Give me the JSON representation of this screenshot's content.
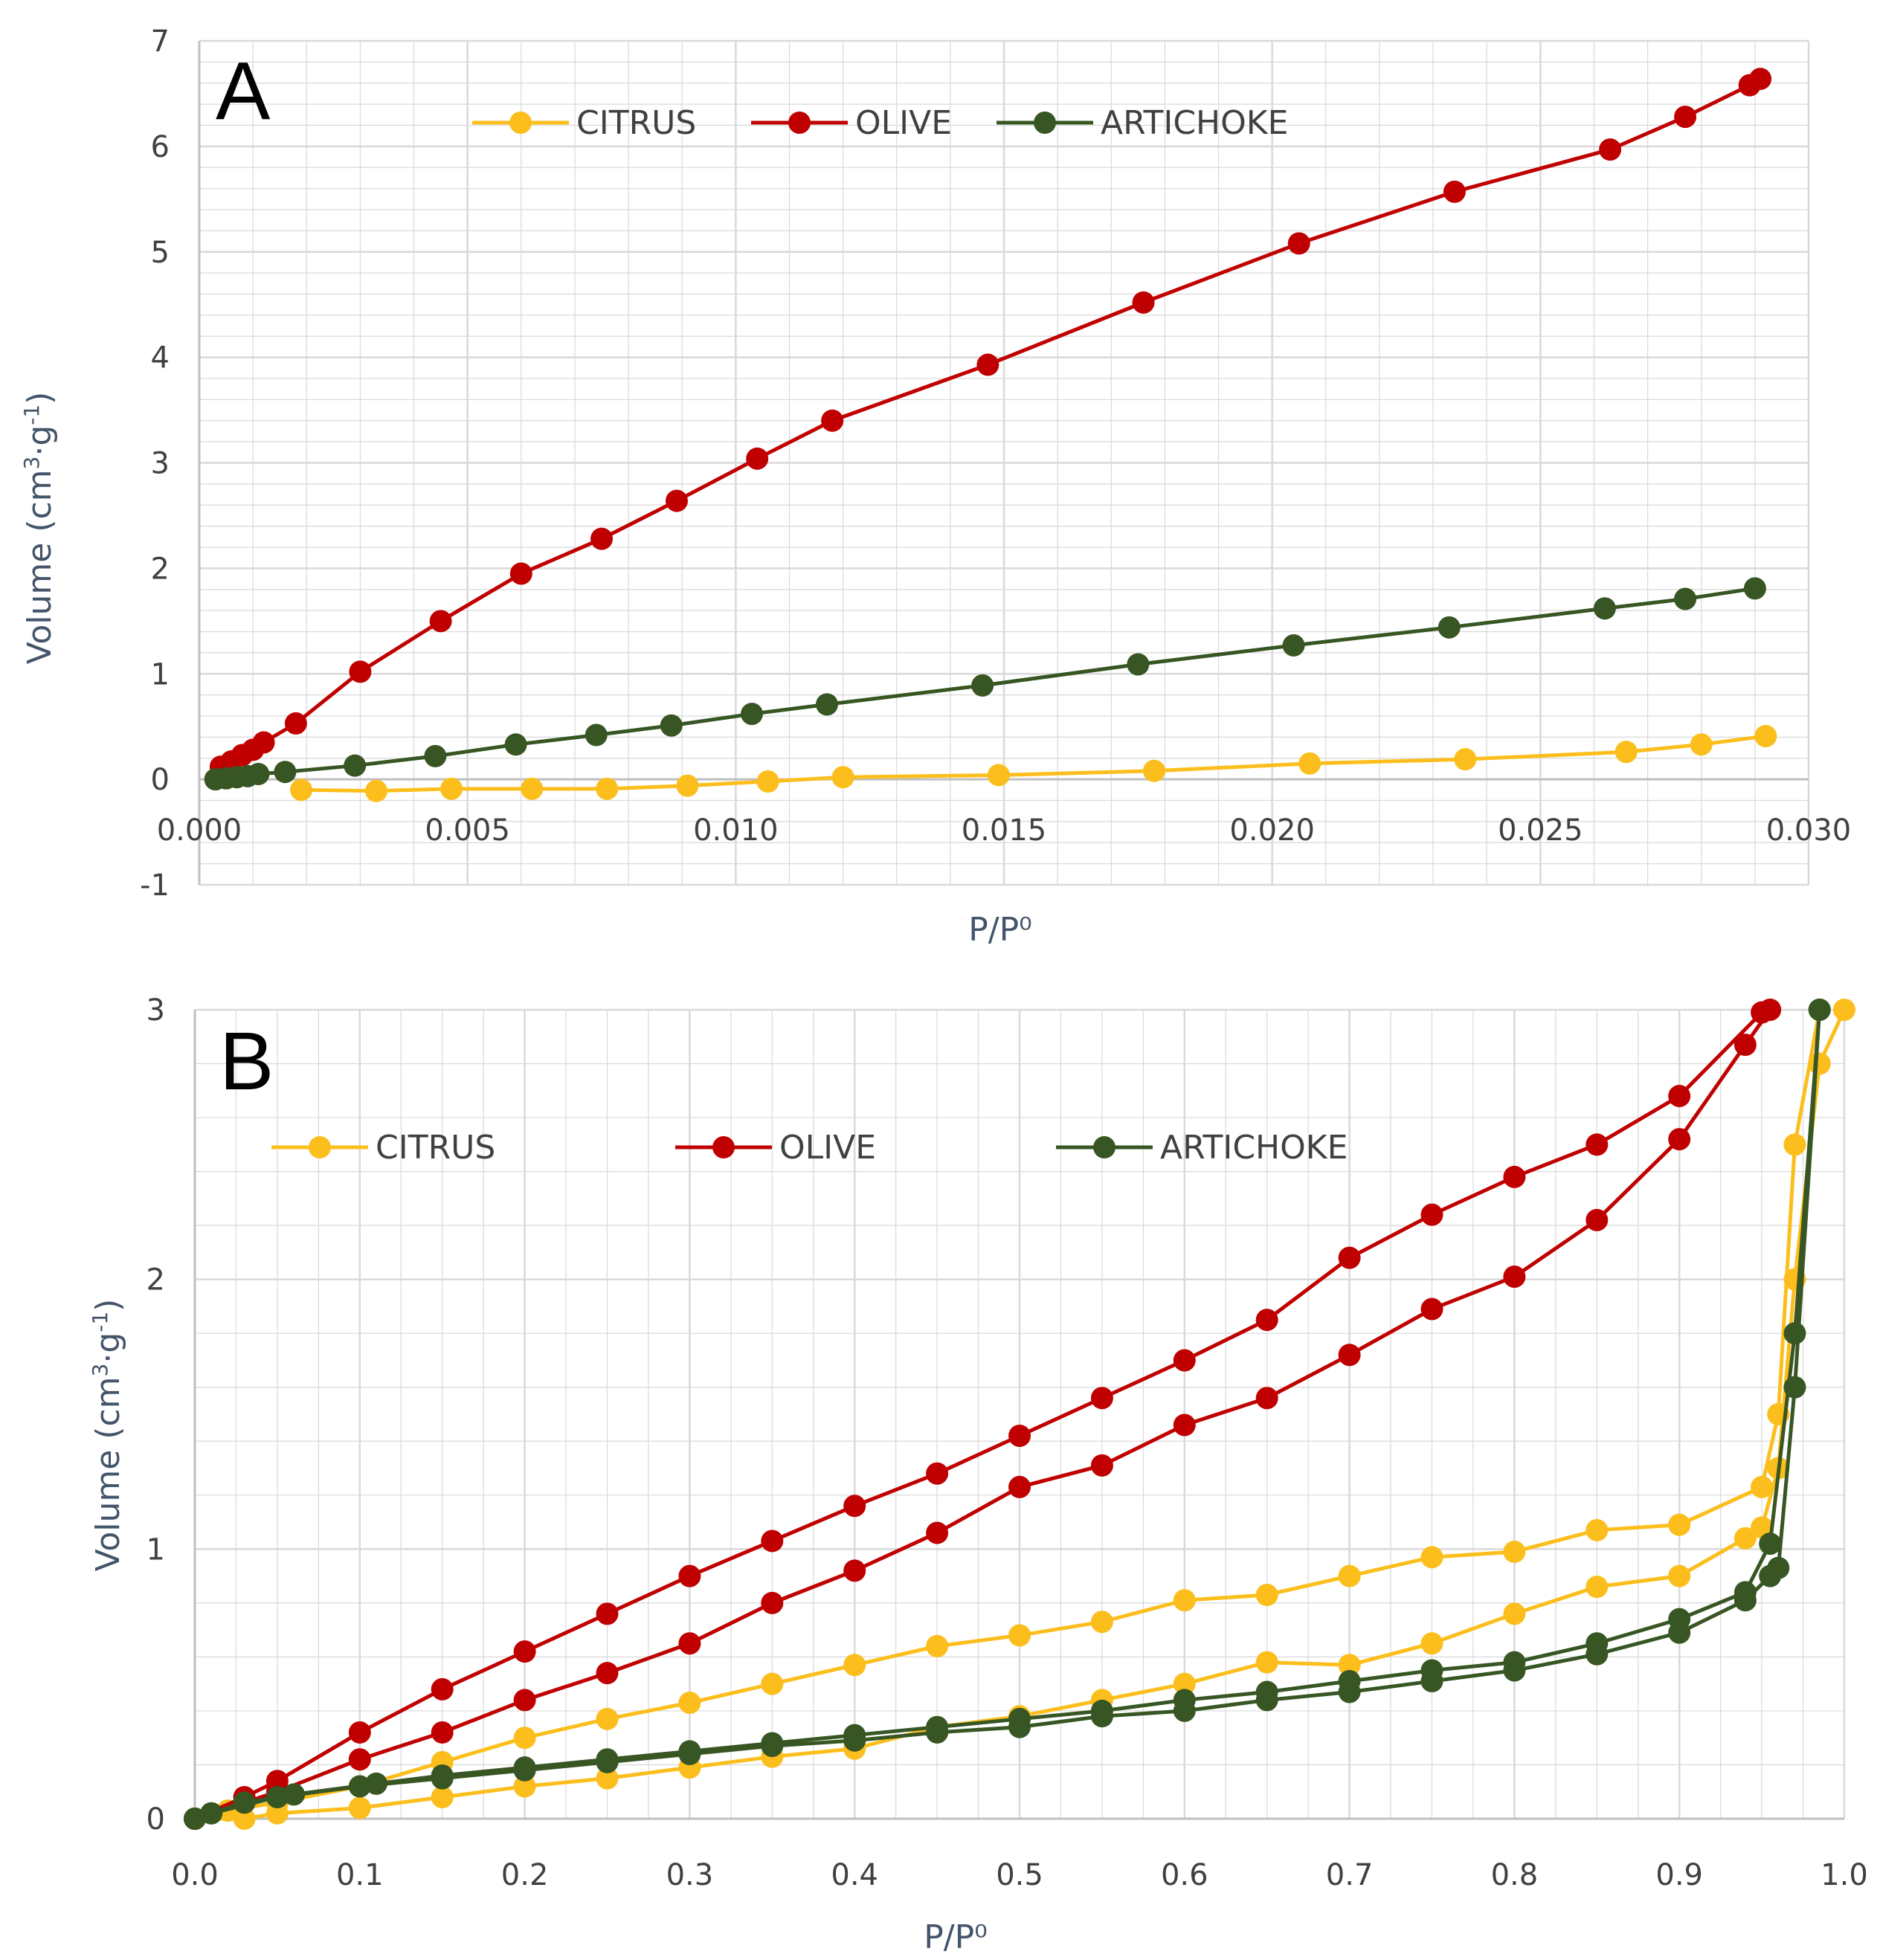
{
  "colors": {
    "CITRUS": "#fbbe1c",
    "OLIVE": "#c00000",
    "ARTICHOKE": "#375623",
    "grid": "#d9d9d9",
    "axis": "#bfbfbf"
  },
  "chart_data": [
    {
      "type": "line",
      "panel_label": "A",
      "xlabel": "P/P⁰",
      "ylabel_main": "Volume (cm",
      "ylabel_sup1": "3",
      "ylabel_mid": "·g",
      "ylabel_sup2": "-1",
      "ylabel_end": ")",
      "xlim": [
        0,
        0.03
      ],
      "ylim": [
        -1,
        7
      ],
      "x_ticks": [
        0,
        0.005,
        0.01,
        0.015,
        0.02,
        0.025,
        0.03
      ],
      "x_tick_labels": [
        "0.000",
        "0.005",
        "0.010",
        "0.015",
        "0.020",
        "0.025",
        "0.030"
      ],
      "y_ticks": [
        -1,
        0,
        1,
        2,
        3,
        4,
        5,
        6,
        7
      ],
      "y_tick_labels": [
        "-1",
        "0",
        "1",
        "2",
        "3",
        "4",
        "5",
        "6",
        "7"
      ],
      "series": [
        {
          "name": "CITRUS",
          "x": [
            0.0019,
            0.0033,
            0.0047,
            0.0062,
            0.0076,
            0.0091,
            0.0106,
            0.012,
            0.0149,
            0.0178,
            0.0207,
            0.0236,
            0.0266,
            0.028,
            0.0292
          ],
          "y": [
            -0.1,
            -0.11,
            -0.09,
            -0.09,
            -0.09,
            -0.06,
            -0.02,
            0.02,
            0.04,
            0.08,
            0.15,
            0.19,
            0.26,
            0.33,
            0.41
          ]
        },
        {
          "name": "OLIVE",
          "x": [
            0.0004,
            0.0006,
            0.0008,
            0.001,
            0.0012,
            0.0018,
            0.003,
            0.0045,
            0.006,
            0.0075,
            0.0089,
            0.0104,
            0.0118,
            0.0147,
            0.0176,
            0.0205,
            0.0234,
            0.0263,
            0.0277,
            0.0289,
            0.0291
          ],
          "y": [
            0.12,
            0.17,
            0.23,
            0.28,
            0.35,
            0.53,
            1.02,
            1.5,
            1.95,
            2.28,
            2.64,
            3.04,
            3.4,
            3.93,
            4.52,
            5.08,
            5.57,
            5.97,
            6.28,
            6.58,
            6.64
          ]
        },
        {
          "name": "ARTICHOKE",
          "x": [
            0.0003,
            0.0005,
            0.0007,
            0.0009,
            0.0011,
            0.0016,
            0.0029,
            0.0044,
            0.0059,
            0.0074,
            0.0088,
            0.0103,
            0.0117,
            0.0146,
            0.0175,
            0.0204,
            0.0233,
            0.0262,
            0.0277,
            0.029
          ],
          "y": [
            0.0,
            0.01,
            0.02,
            0.03,
            0.05,
            0.07,
            0.13,
            0.22,
            0.33,
            0.42,
            0.51,
            0.62,
            0.71,
            0.89,
            1.09,
            1.27,
            1.44,
            1.62,
            1.71,
            1.81
          ]
        }
      ]
    },
    {
      "type": "line",
      "panel_label": "B",
      "xlabel": "P/P⁰",
      "ylabel_main": "Volume (cm",
      "ylabel_sup1": "3",
      "ylabel_mid": "·g",
      "ylabel_sup2": "-1",
      "ylabel_end": ")",
      "xlim": [
        0,
        1
      ],
      "ylim": [
        0,
        3
      ],
      "x_ticks": [
        0,
        0.1,
        0.2,
        0.3,
        0.4,
        0.5,
        0.6,
        0.7,
        0.8,
        0.9,
        1.0
      ],
      "x_tick_labels": [
        "0.0",
        "0.1",
        "0.2",
        "0.3",
        "0.4",
        "0.5",
        "0.6",
        "0.7",
        "0.8",
        "0.9",
        "1.0"
      ],
      "y_ticks": [
        0,
        1,
        2,
        3
      ],
      "y_tick_labels": [
        "0",
        "1",
        "2",
        "3"
      ],
      "series": [
        {
          "name": "CITRUS",
          "branch": "adsorption",
          "x": [
            0,
            0.03,
            0.05,
            0.1,
            0.15,
            0.2,
            0.25,
            0.3,
            0.35,
            0.4,
            0.45,
            0.5,
            0.55,
            0.6,
            0.65,
            0.7,
            0.75,
            0.8,
            0.85,
            0.9,
            0.94,
            0.95,
            0.96,
            0.97,
            0.985,
            1.0
          ],
          "y": [
            0.0,
            0.0,
            0.02,
            0.04,
            0.08,
            0.12,
            0.15,
            0.19,
            0.23,
            0.26,
            0.34,
            0.38,
            0.44,
            0.5,
            0.58,
            0.57,
            0.65,
            0.76,
            0.86,
            0.9,
            1.04,
            1.08,
            1.3,
            2.0,
            2.8,
            3.0
          ]
        },
        {
          "name": "CITRUS",
          "branch": "desorption",
          "x": [
            0.985,
            0.97,
            0.96,
            0.95,
            0.9,
            0.85,
            0.8,
            0.75,
            0.7,
            0.65,
            0.6,
            0.55,
            0.5,
            0.45,
            0.4,
            0.35,
            0.3,
            0.25,
            0.2,
            0.15,
            0.1,
            0.05,
            0.02,
            0
          ],
          "y": [
            3.0,
            2.5,
            1.5,
            1.23,
            1.09,
            1.07,
            0.99,
            0.97,
            0.9,
            0.83,
            0.81,
            0.73,
            0.68,
            0.64,
            0.57,
            0.5,
            0.43,
            0.37,
            0.3,
            0.21,
            0.12,
            0.06,
            0.03,
            0.0
          ]
        },
        {
          "name": "OLIVE",
          "branch": "adsorption",
          "x": [
            0,
            0.03,
            0.05,
            0.1,
            0.15,
            0.2,
            0.25,
            0.3,
            0.35,
            0.4,
            0.45,
            0.5,
            0.55,
            0.6,
            0.65,
            0.7,
            0.75,
            0.8,
            0.85,
            0.9,
            0.94,
            0.955
          ],
          "y": [
            0.0,
            0.06,
            0.1,
            0.22,
            0.32,
            0.44,
            0.54,
            0.65,
            0.8,
            0.92,
            1.06,
            1.23,
            1.31,
            1.46,
            1.56,
            1.72,
            1.89,
            2.01,
            2.22,
            2.52,
            2.87,
            3.0
          ]
        },
        {
          "name": "OLIVE",
          "branch": "desorption",
          "x": [
            0.95,
            0.9,
            0.85,
            0.8,
            0.75,
            0.7,
            0.65,
            0.6,
            0.55,
            0.5,
            0.45,
            0.4,
            0.35,
            0.3,
            0.25,
            0.2,
            0.15,
            0.1,
            0.05,
            0.03,
            0
          ],
          "y": [
            2.99,
            2.68,
            2.5,
            2.38,
            2.24,
            2.08,
            1.85,
            1.7,
            1.56,
            1.42,
            1.28,
            1.16,
            1.03,
            0.9,
            0.76,
            0.62,
            0.48,
            0.32,
            0.14,
            0.08,
            0.0
          ]
        },
        {
          "name": "ARTICHOKE",
          "branch": "adsorption",
          "x": [
            0,
            0.01,
            0.05,
            0.1,
            0.15,
            0.2,
            0.25,
            0.3,
            0.35,
            0.4,
            0.45,
            0.5,
            0.55,
            0.6,
            0.65,
            0.7,
            0.75,
            0.8,
            0.85,
            0.9,
            0.94,
            0.955,
            0.96,
            0.97,
            0.985
          ],
          "y": [
            0.0,
            0.02,
            0.08,
            0.12,
            0.15,
            0.18,
            0.21,
            0.24,
            0.27,
            0.29,
            0.32,
            0.34,
            0.38,
            0.4,
            0.44,
            0.47,
            0.51,
            0.55,
            0.61,
            0.69,
            0.81,
            0.9,
            0.93,
            1.6,
            3.0
          ]
        },
        {
          "name": "ARTICHOKE",
          "branch": "desorption",
          "x": [
            0.985,
            0.97,
            0.955,
            0.94,
            0.9,
            0.85,
            0.8,
            0.75,
            0.7,
            0.65,
            0.6,
            0.55,
            0.5,
            0.45,
            0.4,
            0.35,
            0.3,
            0.25,
            0.2,
            0.15,
            0.11,
            0.06,
            0.03,
            0
          ],
          "y": [
            3.0,
            1.8,
            1.02,
            0.84,
            0.74,
            0.65,
            0.58,
            0.55,
            0.51,
            0.47,
            0.44,
            0.4,
            0.37,
            0.34,
            0.31,
            0.28,
            0.25,
            0.22,
            0.19,
            0.16,
            0.13,
            0.09,
            0.06,
            0.0
          ]
        }
      ]
    }
  ],
  "legend": [
    {
      "name": "CITRUS",
      "label": "CITRUS"
    },
    {
      "name": "OLIVE",
      "label": "OLIVE"
    },
    {
      "name": "ARTICHOKE",
      "label": "ARTICHOKE"
    }
  ]
}
